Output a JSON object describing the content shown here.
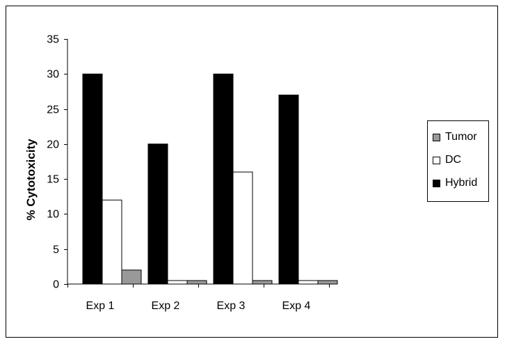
{
  "chart_data": {
    "type": "bar",
    "title": "",
    "xlabel": "",
    "ylabel": "% Cytotoxicity",
    "categories": [
      "Exp 1",
      "Exp 2",
      "Exp 3",
      "Exp 4"
    ],
    "series": [
      {
        "name": "Hybrid",
        "color": "#000000",
        "values": [
          30,
          20,
          30,
          27
        ]
      },
      {
        "name": "DC",
        "color": "#ffffff",
        "values": [
          12,
          0.5,
          16,
          0.5
        ]
      },
      {
        "name": "Tumor",
        "color": "#999999",
        "values": [
          2,
          0.5,
          0.5,
          0.5
        ]
      }
    ],
    "ylim": [
      0,
      35
    ],
    "yticks": [
      0,
      5,
      10,
      15,
      20,
      25,
      30,
      35
    ],
    "grid": false,
    "legend": {
      "position": "right",
      "items": [
        {
          "name": "Tumor",
          "color": "#999999"
        },
        {
          "name": "DC",
          "color": "#ffffff"
        },
        {
          "name": "Hybrid",
          "color": "#000000"
        }
      ]
    }
  }
}
